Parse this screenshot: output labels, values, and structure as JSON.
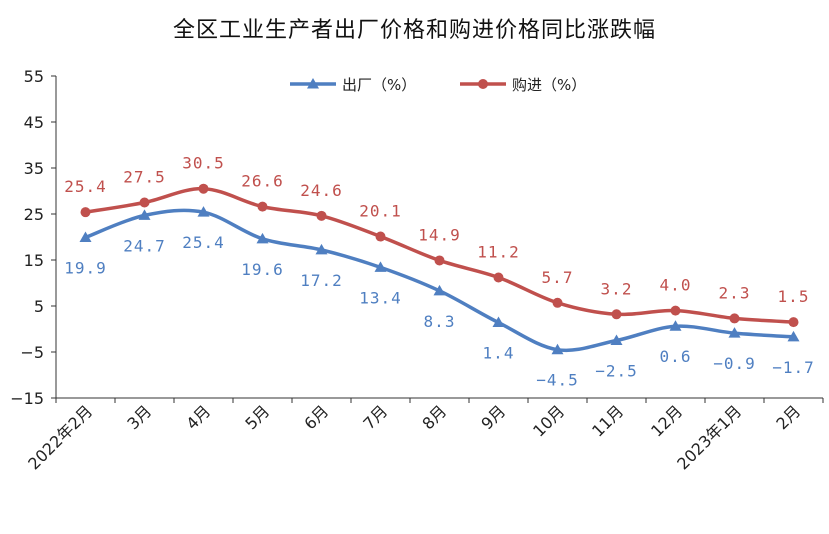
{
  "chart_data": {
    "type": "line",
    "title": "全区工业生产者出厂价格和购进价格同比涨跌幅",
    "categories": [
      "2022年2月",
      "3月",
      "4月",
      "5月",
      "6月",
      "7月",
      "8月",
      "9月",
      "10月",
      "11月",
      "12月",
      "2023年1月",
      "2月"
    ],
    "y_ticks": [
      "55",
      "45",
      "35",
      "25",
      "15",
      "5",
      "−5",
      "−15"
    ],
    "ylim": [
      -15,
      55
    ],
    "grid": false,
    "legend_position": "top",
    "series": [
      {
        "name": "出厂（%）",
        "color": "#4f7fc1",
        "marker": "triangle",
        "values": [
          19.9,
          24.7,
          25.4,
          19.6,
          17.2,
          13.4,
          8.3,
          1.4,
          -4.5,
          -2.5,
          0.6,
          -0.9,
          -1.7
        ],
        "labels": [
          "19.9",
          "24.7",
          "25.4",
          "19.6",
          "17.2",
          "13.4",
          "8.3",
          "1.4",
          "−4.5",
          "−2.5",
          "0.6",
          "−0.9",
          "−1.7"
        ],
        "label_position": [
          "below",
          "below",
          "below",
          "below",
          "below",
          "below",
          "below",
          "below",
          "below",
          "below",
          "below",
          "below",
          "below"
        ]
      },
      {
        "name": "购进（%）",
        "color": "#c0504d",
        "marker": "circle",
        "values": [
          25.4,
          27.5,
          30.5,
          26.6,
          24.6,
          20.1,
          14.9,
          11.2,
          5.7,
          3.2,
          4.0,
          2.3,
          1.5
        ],
        "labels": [
          "25.4",
          "27.5",
          "30.5",
          "26.6",
          "24.6",
          "20.1",
          "14.9",
          "11.2",
          "5.7",
          "3.2",
          "4.0",
          "2.3",
          "1.5"
        ],
        "label_position": [
          "above",
          "above",
          "above",
          "above",
          "above",
          "above",
          "above",
          "above",
          "above",
          "above",
          "above",
          "above",
          "above"
        ]
      }
    ]
  }
}
